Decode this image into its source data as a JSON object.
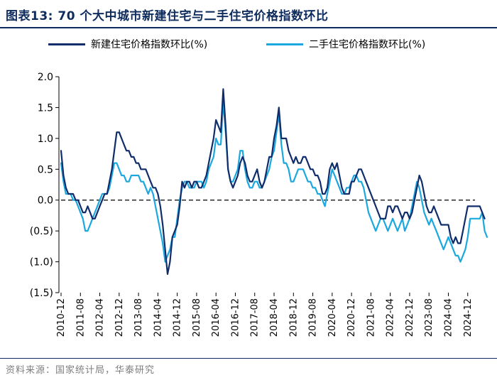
{
  "title": "图表13:  70 个大中城市新建住宅与二手住宅价格指数环比",
  "source": "资料来源：国家统计局，华泰研究",
  "chart_data": {
    "type": "line",
    "title": "70 个大中城市新建住宅与二手住宅价格指数环比",
    "xlabel": "",
    "ylabel": "",
    "ylim": [
      -1.5,
      2.0
    ],
    "yticks": [
      {
        "value": 2.0,
        "label": "2.0"
      },
      {
        "value": 1.5,
        "label": "1.5"
      },
      {
        "value": 1.0,
        "label": "1.0"
      },
      {
        "value": 0.5,
        "label": "0.5"
      },
      {
        "value": 0.0,
        "label": "0.0"
      },
      {
        "value": -0.5,
        "label": "(0.5)"
      },
      {
        "value": -1.0,
        "label": "(1.0)"
      },
      {
        "value": -1.5,
        "label": "(1.5)"
      }
    ],
    "x_start": "2010-12",
    "x_end": "2025-03",
    "xtick_labels": [
      "2010-12",
      "2011-08",
      "2012-04",
      "2012-12",
      "2013-08",
      "2014-04",
      "2014-12",
      "2015-08",
      "2016-04",
      "2016-12",
      "2017-08",
      "2018-04",
      "2018-12",
      "2019-08",
      "2020-04",
      "2020-12",
      "2021-08",
      "2022-04",
      "2022-12",
      "2023-08",
      "2024-04",
      "2024-12"
    ],
    "zero_line": "dashed",
    "legend_position": "top",
    "series": [
      {
        "name": "新建住宅价格指数环比(%)",
        "color": "#0f2c6b",
        "values": [
          0.8,
          0.4,
          0.2,
          0.1,
          0.1,
          0.1,
          0.0,
          0.0,
          -0.1,
          -0.2,
          -0.2,
          -0.1,
          -0.2,
          -0.3,
          -0.3,
          -0.2,
          -0.1,
          0.0,
          0.1,
          0.1,
          0.3,
          0.5,
          0.8,
          1.1,
          1.1,
          1.0,
          0.9,
          0.8,
          0.8,
          0.7,
          0.7,
          0.6,
          0.6,
          0.5,
          0.5,
          0.5,
          0.4,
          0.3,
          0.2,
          0.2,
          0.1,
          -0.1,
          -0.4,
          -0.8,
          -1.2,
          -1.0,
          -0.6,
          -0.5,
          -0.4,
          -0.1,
          0.3,
          0.2,
          0.3,
          0.3,
          0.2,
          0.3,
          0.3,
          0.2,
          0.2,
          0.3,
          0.4,
          0.6,
          0.8,
          1.0,
          1.3,
          1.2,
          1.1,
          1.8,
          1.2,
          0.5,
          0.3,
          0.2,
          0.3,
          0.4,
          0.6,
          0.7,
          0.6,
          0.4,
          0.3,
          0.3,
          0.4,
          0.5,
          0.3,
          0.2,
          0.3,
          0.5,
          0.7,
          0.7,
          1.0,
          1.2,
          1.5,
          1.0,
          1.0,
          1.0,
          0.8,
          0.7,
          0.6,
          0.7,
          0.6,
          0.6,
          0.7,
          0.7,
          0.6,
          0.5,
          0.5,
          0.4,
          0.4,
          0.3,
          0.1,
          0.1,
          0.2,
          0.5,
          0.6,
          0.5,
          0.6,
          0.4,
          0.2,
          0.1,
          0.1,
          0.1,
          0.3,
          0.3,
          0.4,
          0.5,
          0.5,
          0.4,
          0.3,
          0.2,
          0.1,
          0.0,
          -0.1,
          -0.2,
          -0.3,
          -0.3,
          -0.3,
          -0.1,
          -0.1,
          -0.2,
          -0.1,
          -0.1,
          -0.2,
          -0.3,
          -0.2,
          -0.2,
          -0.3,
          -0.2,
          0.0,
          0.2,
          0.4,
          0.3,
          0.1,
          -0.1,
          -0.2,
          -0.2,
          -0.1,
          -0.2,
          -0.3,
          -0.4,
          -0.4,
          -0.4,
          -0.4,
          -0.6,
          -0.7,
          -0.6,
          -0.7,
          -0.7,
          -0.5,
          -0.3,
          -0.1,
          -0.1,
          -0.1,
          -0.1,
          -0.1,
          -0.1,
          -0.2,
          -0.3
        ]
      },
      {
        "name": "二手住宅价格指数环比(%)",
        "color": "#1aa8e0",
        "values": [
          0.6,
          0.3,
          0.1,
          0.1,
          0.1,
          0.0,
          0.0,
          -0.1,
          -0.2,
          -0.3,
          -0.5,
          -0.5,
          -0.4,
          -0.3,
          -0.2,
          -0.1,
          0.0,
          0.1,
          0.1,
          0.1,
          0.2,
          0.4,
          0.6,
          0.6,
          0.5,
          0.4,
          0.4,
          0.3,
          0.3,
          0.4,
          0.4,
          0.4,
          0.4,
          0.3,
          0.3,
          0.2,
          0.1,
          0.2,
          0.1,
          -0.1,
          -0.3,
          -0.5,
          -0.7,
          -1.0,
          -0.9,
          -0.8,
          -0.6,
          -0.6,
          -0.3,
          0.0,
          0.2,
          0.3,
          0.3,
          0.2,
          0.2,
          0.2,
          0.3,
          0.3,
          0.3,
          0.2,
          0.3,
          0.5,
          0.6,
          0.7,
          1.0,
          0.9,
          0.9,
          1.6,
          1.1,
          0.5,
          0.3,
          0.3,
          0.4,
          0.5,
          0.8,
          0.8,
          0.5,
          0.3,
          0.2,
          0.2,
          0.3,
          0.3,
          0.2,
          0.2,
          0.3,
          0.4,
          0.5,
          0.7,
          0.8,
          1.1,
          1.4,
          0.9,
          0.6,
          0.6,
          0.5,
          0.3,
          0.3,
          0.4,
          0.5,
          0.5,
          0.5,
          0.4,
          0.3,
          0.3,
          0.2,
          0.2,
          0.1,
          0.1,
          0.0,
          -0.1,
          0.1,
          0.3,
          0.5,
          0.4,
          0.3,
          0.2,
          0.1,
          0.1,
          0.2,
          0.2,
          0.3,
          0.4,
          0.4,
          0.3,
          0.3,
          0.2,
          0.0,
          -0.2,
          -0.3,
          -0.4,
          -0.5,
          -0.4,
          -0.3,
          -0.3,
          -0.4,
          -0.5,
          -0.4,
          -0.3,
          -0.4,
          -0.5,
          -0.4,
          -0.3,
          -0.5,
          -0.4,
          -0.3,
          -0.1,
          0.1,
          0.3,
          0.2,
          0.0,
          -0.2,
          -0.3,
          -0.4,
          -0.3,
          -0.4,
          -0.5,
          -0.6,
          -0.7,
          -0.8,
          -0.7,
          -0.6,
          -0.7,
          -0.8,
          -0.9,
          -0.9,
          -1.0,
          -0.9,
          -0.8,
          -0.6,
          -0.3,
          -0.3,
          -0.3,
          -0.3,
          -0.3,
          -0.2,
          -0.5,
          -0.6
        ]
      }
    ]
  }
}
